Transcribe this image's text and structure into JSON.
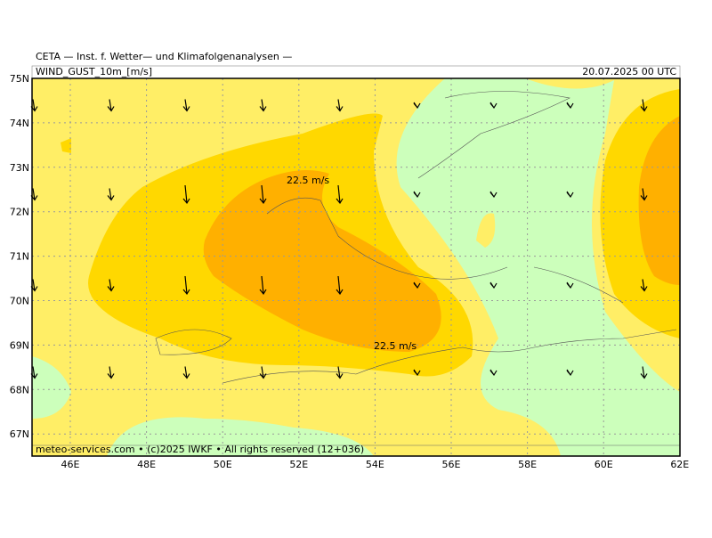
{
  "header": {
    "title": "CETA — Inst. f. Wetter— und Klimafolgenanalysen —",
    "variable": "WIND_GUST_10m_[m/s]",
    "valid_time": "20.07.2025 00 UTC"
  },
  "map": {
    "lat_labels": [
      "75N",
      "74N",
      "73N",
      "72N",
      "71N",
      "70N",
      "69N",
      "68N",
      "67N"
    ],
    "lon_labels": [
      "46E",
      "48E",
      "50E",
      "52E",
      "54E",
      "56E",
      "58E",
      "60E",
      "62E"
    ],
    "contour_labels": [
      "22.5 m/s",
      "22.5 m/s"
    ]
  },
  "footer": "meteo-services.com • (c)2025 IWKF • All rights reserved (12+036)"
}
